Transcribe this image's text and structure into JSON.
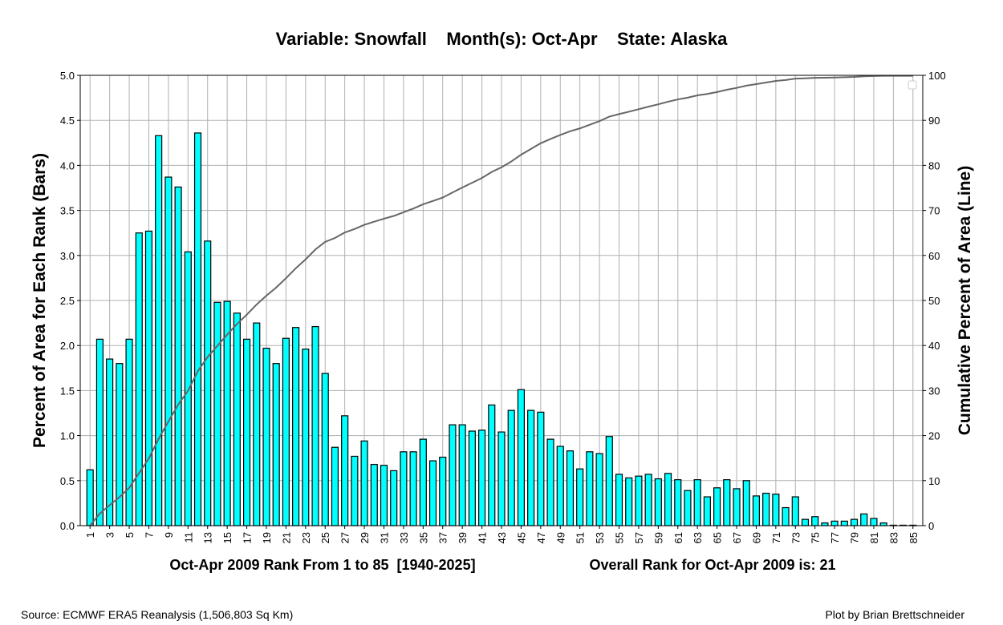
{
  "chart_data": {
    "type": "bar",
    "title": "Variable: Snowfall    Month(s): Oct-Apr    State: Alaska",
    "xlabel": "Oct-Apr 2009 Rank From 1 to 85  [1940-2025]",
    "ylabel": "Percent of Area for Each Rank (Bars)",
    "y2label": "Cumulative Percent of Area (Line)",
    "annotation": "Overall Rank for Oct-Apr 2009 is: 21",
    "xlim": [
      0,
      86
    ],
    "ylim": [
      0,
      5
    ],
    "y2lim": [
      0,
      100
    ],
    "yticks": [
      "0.0",
      "0.5",
      "1.0",
      "1.5",
      "2.0",
      "2.5",
      "3.0",
      "3.5",
      "4.0",
      "4.5",
      "5.0"
    ],
    "y2ticks": [
      "0",
      "10",
      "20",
      "30",
      "40",
      "50",
      "60",
      "70",
      "80",
      "90",
      "100"
    ],
    "grid": true,
    "legend": "top-right (empty)",
    "bar_color": "#00ffff",
    "line_color": "#666666",
    "categories": [
      1,
      2,
      3,
      4,
      5,
      6,
      7,
      8,
      9,
      10,
      11,
      12,
      13,
      14,
      15,
      16,
      17,
      18,
      19,
      20,
      21,
      22,
      23,
      24,
      25,
      26,
      27,
      28,
      29,
      30,
      31,
      32,
      33,
      34,
      35,
      36,
      37,
      38,
      39,
      40,
      41,
      42,
      43,
      44,
      45,
      46,
      47,
      48,
      49,
      50,
      51,
      52,
      53,
      54,
      55,
      56,
      57,
      58,
      59,
      60,
      61,
      62,
      63,
      64,
      65,
      66,
      67,
      68,
      69,
      70,
      71,
      72,
      73,
      74,
      75,
      76,
      77,
      78,
      79,
      80,
      81,
      82,
      83,
      84,
      85
    ],
    "values": [
      0.62,
      2.07,
      1.85,
      1.8,
      2.07,
      3.25,
      3.27,
      4.33,
      3.87,
      3.76,
      3.04,
      4.36,
      3.16,
      2.48,
      2.49,
      2.36,
      2.07,
      2.25,
      1.97,
      1.8,
      2.08,
      2.2,
      1.96,
      2.21,
      1.69,
      0.87,
      1.22,
      0.77,
      0.94,
      0.68,
      0.67,
      0.61,
      0.82,
      0.82,
      0.96,
      0.72,
      0.76,
      1.12,
      1.12,
      1.05,
      1.06,
      1.34,
      1.04,
      1.28,
      1.51,
      1.28,
      1.26,
      0.96,
      0.88,
      0.83,
      0.63,
      0.82,
      0.8,
      0.99,
      0.57,
      0.53,
      0.55,
      0.57,
      0.52,
      0.58,
      0.51,
      0.39,
      0.51,
      0.32,
      0.42,
      0.51,
      0.41,
      0.5,
      0.33,
      0.36,
      0.35,
      0.2,
      0.32,
      0.07,
      0.1,
      0.03,
      0.05,
      0.05,
      0.07,
      0.13,
      0.08,
      0.03,
      0.005,
      0.005,
      0.005
    ]
  },
  "footer": {
    "source": "Source: ECMWF ERA5 Reanalysis (1,506,803 Sq Km)",
    "credit": "Plot by Brian Brettschneider"
  }
}
